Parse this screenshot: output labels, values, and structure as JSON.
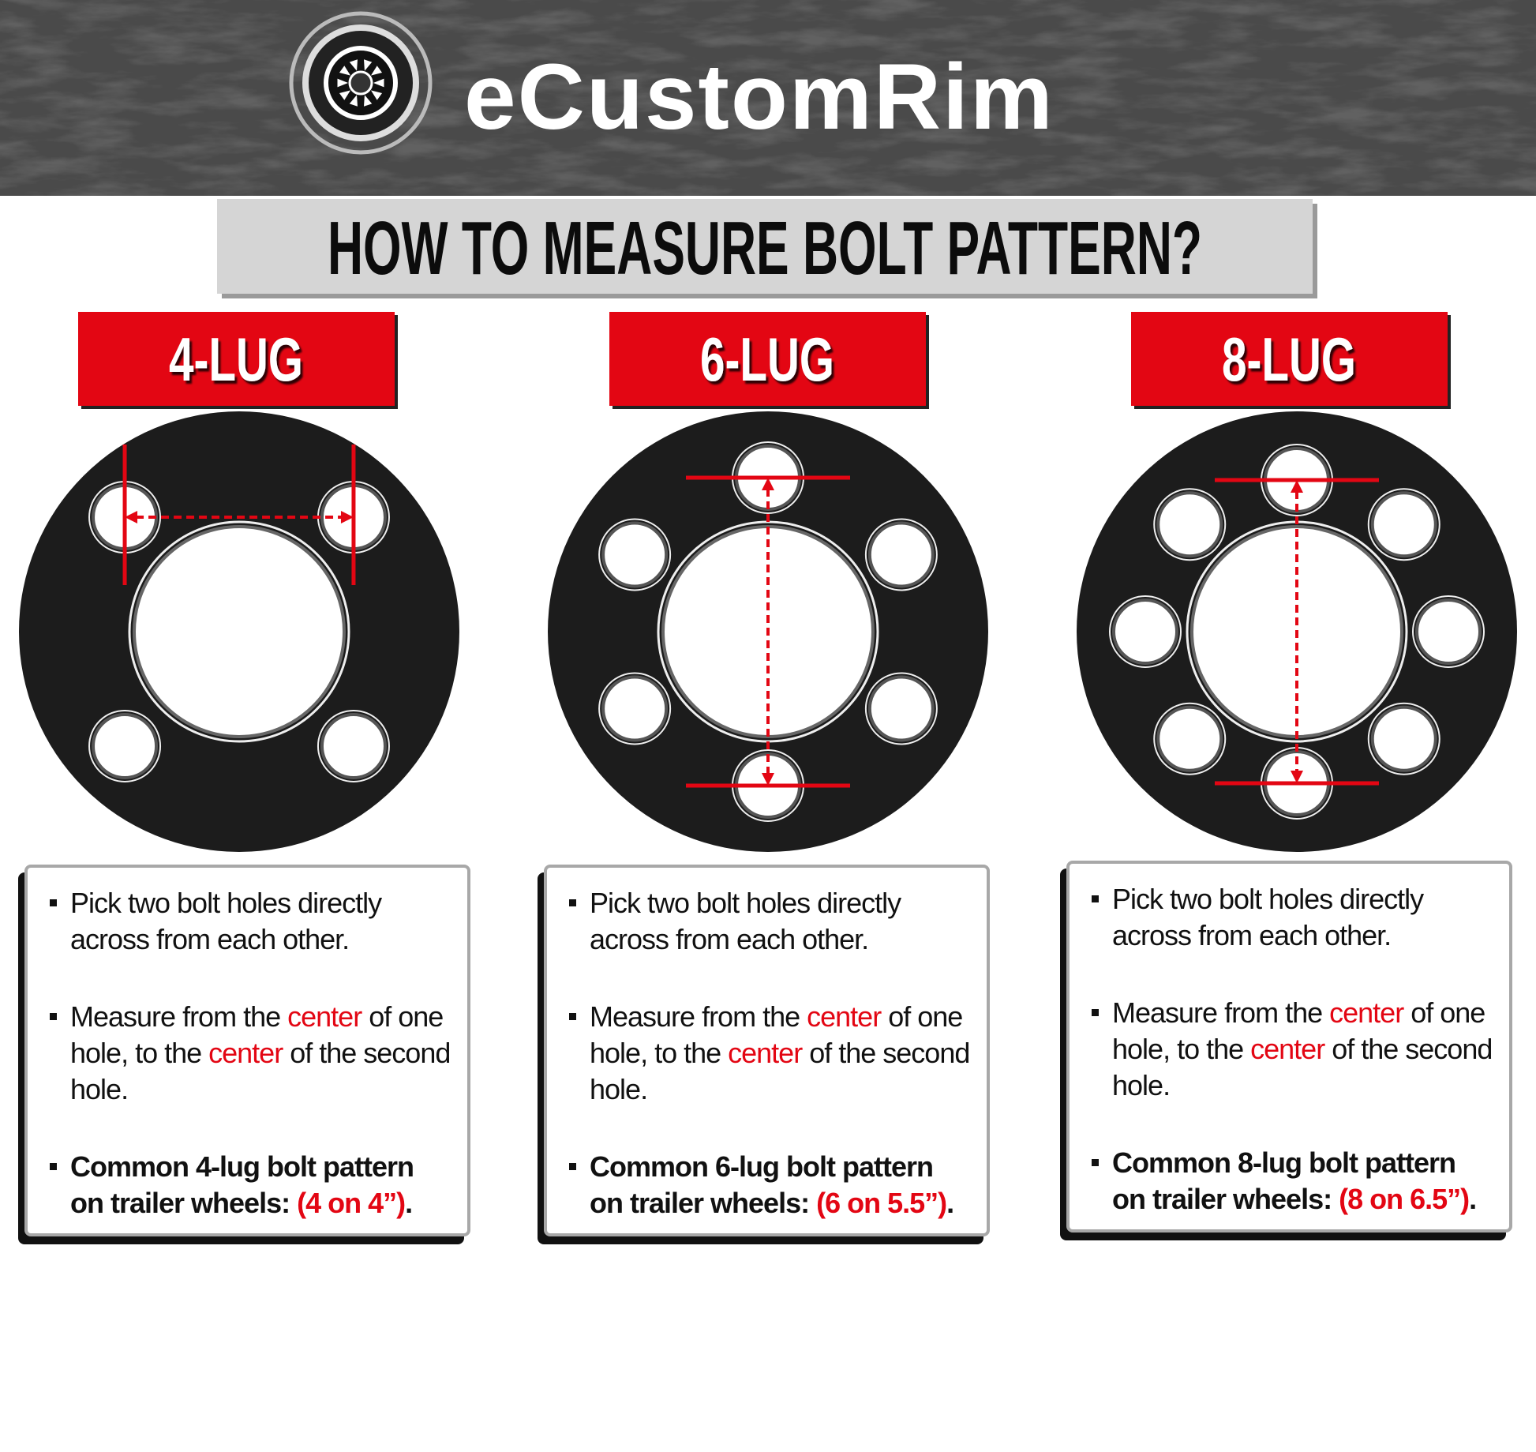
{
  "header": {
    "brand": "eCustomRim"
  },
  "title": "HOW TO MEASURE BOLT PATTERN?",
  "panels": [
    {
      "label": "4-LUG",
      "bullets": [
        {
          "parts": [
            "Pick two bolt holes directly across from each other."
          ]
        },
        {
          "parts": [
            "Measure from the ",
            "center",
            " of one hole, to the ",
            "center",
            " of the second hole."
          ]
        },
        {
          "parts": [
            "Common 4-lug bolt pattern on trailer wheels: ",
            "(4 on 4”)",
            "."
          ]
        }
      ]
    },
    {
      "label": "6-LUG",
      "bullets": [
        {
          "parts": [
            "Pick two bolt holes directly across from each other."
          ]
        },
        {
          "parts": [
            "Measure from the ",
            "center",
            " of one hole, to the ",
            "center",
            " of the second hole."
          ]
        },
        {
          "parts": [
            "Common 6-lug bolt pattern on trailer wheels: ",
            "(6 on 5.5”)",
            "."
          ]
        }
      ]
    },
    {
      "label": "8-LUG",
      "bullets": [
        {
          "parts": [
            "Pick two bolt holes directly across from each other."
          ]
        },
        {
          "parts": [
            "Measure from the ",
            "center",
            " of one hole, to the ",
            "center",
            " of the second hole."
          ]
        },
        {
          "parts": [
            "Common 8-lug bolt pattern on trailer wheels: ",
            "(8 on 6.5”)",
            "."
          ]
        }
      ]
    }
  ]
}
